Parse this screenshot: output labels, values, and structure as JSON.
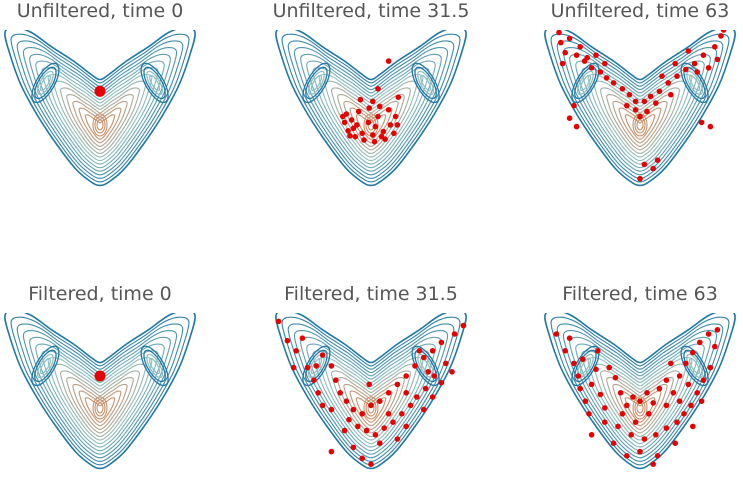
{
  "chart_data": [
    {
      "type": "scatter",
      "title": "Unfiltered, time 0",
      "points": [
        [
          0.0,
          0.52
        ]
      ]
    },
    {
      "type": "scatter",
      "title": "Unfiltered, time 31.5",
      "points": [
        [
          0.2,
          0.88
        ],
        [
          0.08,
          0.55
        ],
        [
          0.02,
          0.4
        ],
        [
          -0.12,
          0.42
        ],
        [
          -0.28,
          0.25
        ],
        [
          -0.3,
          0.15
        ],
        [
          -0.26,
          0.05
        ],
        [
          -0.18,
          -0.02
        ],
        [
          -0.08,
          -0.06
        ],
        [
          0.04,
          -0.08
        ],
        [
          0.16,
          -0.05
        ],
        [
          0.26,
          0.02
        ],
        [
          0.3,
          0.12
        ],
        [
          0.28,
          0.22
        ],
        [
          0.2,
          0.3
        ],
        [
          0.1,
          0.34
        ],
        [
          -0.02,
          0.32
        ],
        [
          -0.14,
          0.28
        ],
        [
          -0.22,
          0.18
        ],
        [
          -0.2,
          0.08
        ],
        [
          -0.1,
          0.02
        ],
        [
          0.02,
          0.0
        ],
        [
          0.14,
          0.04
        ],
        [
          0.22,
          0.12
        ],
        [
          -0.32,
          0.22
        ],
        [
          -0.24,
          -0.01
        ],
        [
          -0.03,
          0.15
        ],
        [
          0.08,
          0.22
        ],
        [
          0.31,
          0.45
        ],
        [
          0.05,
          0.1
        ],
        [
          -0.16,
          0.12
        ],
        [
          0.12,
          -0.02
        ]
      ]
    },
    {
      "type": "scatter",
      "title": "Unfiltered, time 63",
      "points": [
        [
          -0.9,
          1.1
        ],
        [
          -0.85,
          0.98
        ],
        [
          -0.72,
          0.95
        ],
        [
          -0.63,
          0.88
        ],
        [
          -0.55,
          0.8
        ],
        [
          -0.45,
          0.75
        ],
        [
          -0.38,
          0.68
        ],
        [
          -0.3,
          0.62
        ],
        [
          -0.2,
          0.55
        ],
        [
          -0.12,
          0.48
        ],
        [
          -0.05,
          0.4
        ],
        [
          0.05,
          0.4
        ],
        [
          0.12,
          0.46
        ],
        [
          0.22,
          0.52
        ],
        [
          0.32,
          0.62
        ],
        [
          0.42,
          0.7
        ],
        [
          0.52,
          0.78
        ],
        [
          0.62,
          0.85
        ],
        [
          0.72,
          0.95
        ],
        [
          0.85,
          1.05
        ],
        [
          0.92,
          1.18
        ],
        [
          0.95,
          1.25
        ],
        [
          -0.92,
          1.22
        ],
        [
          -0.8,
          1.15
        ],
        [
          -0.68,
          1.05
        ],
        [
          -0.6,
          0.92
        ],
        [
          -0.05,
          0.3
        ],
        [
          0.0,
          0.22
        ],
        [
          0.08,
          0.28
        ],
        [
          -0.15,
          0.35
        ],
        [
          0.18,
          0.38
        ],
        [
          0.35,
          0.48
        ],
        [
          -0.75,
          0.35
        ],
        [
          -0.8,
          0.2
        ],
        [
          -0.72,
          0.1
        ],
        [
          0.7,
          0.15
        ],
        [
          0.8,
          0.1
        ],
        [
          0.05,
          -0.35
        ],
        [
          0.15,
          -0.4
        ],
        [
          0.2,
          -0.3
        ],
        [
          0.0,
          -0.52
        ],
        [
          0.55,
          1.0
        ],
        [
          0.65,
          0.75
        ],
        [
          0.88,
          0.9
        ],
        [
          -0.5,
          0.95
        ],
        [
          -0.4,
          0.85
        ],
        [
          0.4,
          0.85
        ],
        [
          0.78,
          0.8
        ],
        [
          -0.88,
          0.85
        ],
        [
          0.25,
          0.7
        ]
      ]
    },
    {
      "type": "scatter",
      "title": "Filtered, time 0",
      "points": [
        [
          0.0,
          0.5
        ]
      ]
    },
    {
      "type": "scatter",
      "title": "Filtered, time 31.5",
      "points": [
        [
          -1.05,
          1.15
        ],
        [
          -0.95,
          0.92
        ],
        [
          -0.85,
          0.8
        ],
        [
          -0.78,
          0.95
        ],
        [
          -0.72,
          0.6
        ],
        [
          -0.65,
          0.45
        ],
        [
          -0.88,
          0.6
        ],
        [
          -0.55,
          0.75
        ],
        [
          -0.45,
          0.62
        ],
        [
          -0.4,
          0.45
        ],
        [
          -0.35,
          0.3
        ],
        [
          -0.28,
          0.2
        ],
        [
          -0.2,
          0.1
        ],
        [
          -0.1,
          0.05
        ],
        [
          0.0,
          0.15
        ],
        [
          0.1,
          0.2
        ],
        [
          0.2,
          0.3
        ],
        [
          0.3,
          0.4
        ],
        [
          0.4,
          0.5
        ],
        [
          0.5,
          0.62
        ],
        [
          0.6,
          0.72
        ],
        [
          0.7,
          0.8
        ],
        [
          0.8,
          0.9
        ],
        [
          0.95,
          1.0
        ],
        [
          1.05,
          1.1
        ],
        [
          0.85,
          0.65
        ],
        [
          0.72,
          0.5
        ],
        [
          0.62,
          0.35
        ],
        [
          0.52,
          0.25
        ],
        [
          0.45,
          0.15
        ],
        [
          0.35,
          0.05
        ],
        [
          0.25,
          -0.05
        ],
        [
          0.15,
          -0.12
        ],
        [
          0.05,
          -0.2
        ],
        [
          -0.05,
          -0.15
        ],
        [
          -0.15,
          -0.1
        ],
        [
          -0.25,
          -0.02
        ],
        [
          -0.45,
          0.1
        ],
        [
          -0.3,
          -0.15
        ],
        [
          0.1,
          -0.3
        ],
        [
          0.3,
          -0.25
        ],
        [
          0.4,
          -0.1
        ],
        [
          -0.2,
          -0.35
        ],
        [
          -0.45,
          -0.4
        ],
        [
          0.0,
          -0.55
        ],
        [
          -0.1,
          -0.48
        ],
        [
          0.6,
          0.1
        ],
        [
          0.7,
          0.25
        ],
        [
          0.8,
          0.42
        ],
        [
          0.92,
          0.55
        ],
        [
          -0.6,
          0.3
        ],
        [
          -0.55,
          0.15
        ],
        [
          0.2,
          0.05
        ],
        [
          -0.02,
          0.4
        ],
        [
          0.4,
          0.3
        ],
        [
          -0.62,
          0.62
        ],
        [
          0.65,
          0.55
        ],
        [
          0.55,
          0.8
        ]
      ]
    },
    {
      "type": "scatter",
      "title": "Filtered, time 63",
      "points": [
        [
          -0.95,
          1.0
        ],
        [
          -0.85,
          0.8
        ],
        [
          -0.75,
          0.65
        ],
        [
          -0.7,
          0.5
        ],
        [
          -0.68,
          0.35
        ],
        [
          -0.62,
          0.2
        ],
        [
          -0.58,
          0.05
        ],
        [
          -0.55,
          0.4
        ],
        [
          -0.5,
          0.58
        ],
        [
          -0.45,
          0.28
        ],
        [
          -0.4,
          0.12
        ],
        [
          -0.35,
          0.6
        ],
        [
          -0.28,
          0.48
        ],
        [
          -0.22,
          0.3
        ],
        [
          -0.15,
          0.15
        ],
        [
          -0.08,
          0.25
        ],
        [
          0.0,
          0.2
        ],
        [
          0.08,
          0.3
        ],
        [
          0.15,
          0.18
        ],
        [
          0.22,
          0.35
        ],
        [
          0.3,
          0.45
        ],
        [
          0.38,
          0.3
        ],
        [
          0.45,
          0.5
        ],
        [
          0.52,
          0.65
        ],
        [
          0.6,
          0.78
        ],
        [
          0.68,
          0.9
        ],
        [
          0.78,
          1.0
        ],
        [
          0.88,
          1.05
        ],
        [
          0.8,
          0.6
        ],
        [
          0.72,
          0.45
        ],
        [
          0.65,
          0.3
        ],
        [
          0.58,
          0.15
        ],
        [
          0.5,
          0.05
        ],
        [
          0.42,
          -0.05
        ],
        [
          0.3,
          -0.12
        ],
        [
          0.18,
          -0.2
        ],
        [
          0.05,
          -0.25
        ],
        [
          -0.1,
          -0.2
        ],
        [
          -0.25,
          -0.1
        ],
        [
          -0.4,
          -0.05
        ],
        [
          -0.55,
          -0.2
        ],
        [
          -0.3,
          -0.3
        ],
        [
          0.0,
          -0.4
        ],
        [
          0.2,
          -0.45
        ],
        [
          0.4,
          -0.3
        ],
        [
          0.6,
          -0.1
        ],
        [
          -0.2,
          0.05
        ],
        [
          0.1,
          0.05
        ],
        [
          -0.05,
          -0.05
        ],
        [
          0.3,
          0.15
        ],
        [
          -0.8,
          0.95
        ],
        [
          0.85,
          0.85
        ],
        [
          0.7,
          0.2
        ],
        [
          -0.65,
          0.7
        ],
        [
          0.15,
          -0.55
        ],
        [
          -0.15,
          -0.45
        ],
        [
          0.45,
          0.2
        ],
        [
          -0.48,
          0.8
        ],
        [
          0.35,
          0.65
        ],
        [
          0.55,
          0.4
        ]
      ]
    }
  ],
  "colors": {
    "title_text": "#555555",
    "scatter": "#e60000",
    "contour_outer": "#1f77a4",
    "contour_mid": "#8fbfbf",
    "contour_inner": "#c8906a"
  }
}
